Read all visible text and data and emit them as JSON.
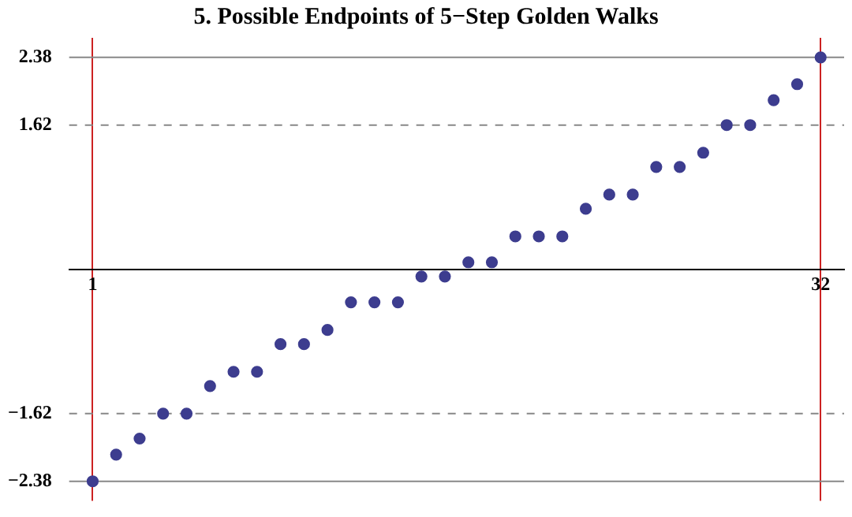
{
  "chart_data": {
    "type": "scatter",
    "title": "5. Possible Endpoints of 5−Step Golden Walks",
    "x": [
      1,
      2,
      3,
      4,
      5,
      6,
      7,
      8,
      9,
      10,
      11,
      12,
      13,
      14,
      15,
      16,
      17,
      18,
      19,
      20,
      21,
      22,
      23,
      24,
      25,
      26,
      27,
      28,
      29,
      30,
      31,
      32
    ],
    "series": [
      {
        "color": "#3d3d8f",
        "values": [
          -2.38,
          -2.08,
          -1.9,
          -1.62,
          -1.62,
          -1.31,
          -1.15,
          -1.15,
          -0.84,
          -0.84,
          -0.68,
          -0.37,
          -0.37,
          -0.37,
          -0.08,
          -0.08,
          0.08,
          0.08,
          0.37,
          0.37,
          0.37,
          0.68,
          0.84,
          0.84,
          1.15,
          1.15,
          1.31,
          1.62,
          1.62,
          1.9,
          2.08,
          2.38
        ]
      }
    ],
    "marker": "circle",
    "xlim": [
      0,
      33
    ],
    "xticks": [
      1,
      32
    ],
    "ylim": [
      -2.6,
      2.6
    ],
    "yticks": [
      -2.38,
      -1.62,
      1.62,
      2.38
    ],
    "grid": "x",
    "legend": false,
    "ref_lines": [
      {
        "axis": "y",
        "value": 2.38,
        "color": "#888888",
        "line_style": "solid"
      },
      {
        "axis": "y",
        "value": -2.38,
        "color": "#888888",
        "line_style": "solid"
      },
      {
        "axis": "y",
        "value": 1.62,
        "color": "#888888",
        "line_style": "dashed"
      },
      {
        "axis": "y",
        "value": -1.62,
        "color": "#888888",
        "line_style": "dashed"
      }
    ]
  }
}
